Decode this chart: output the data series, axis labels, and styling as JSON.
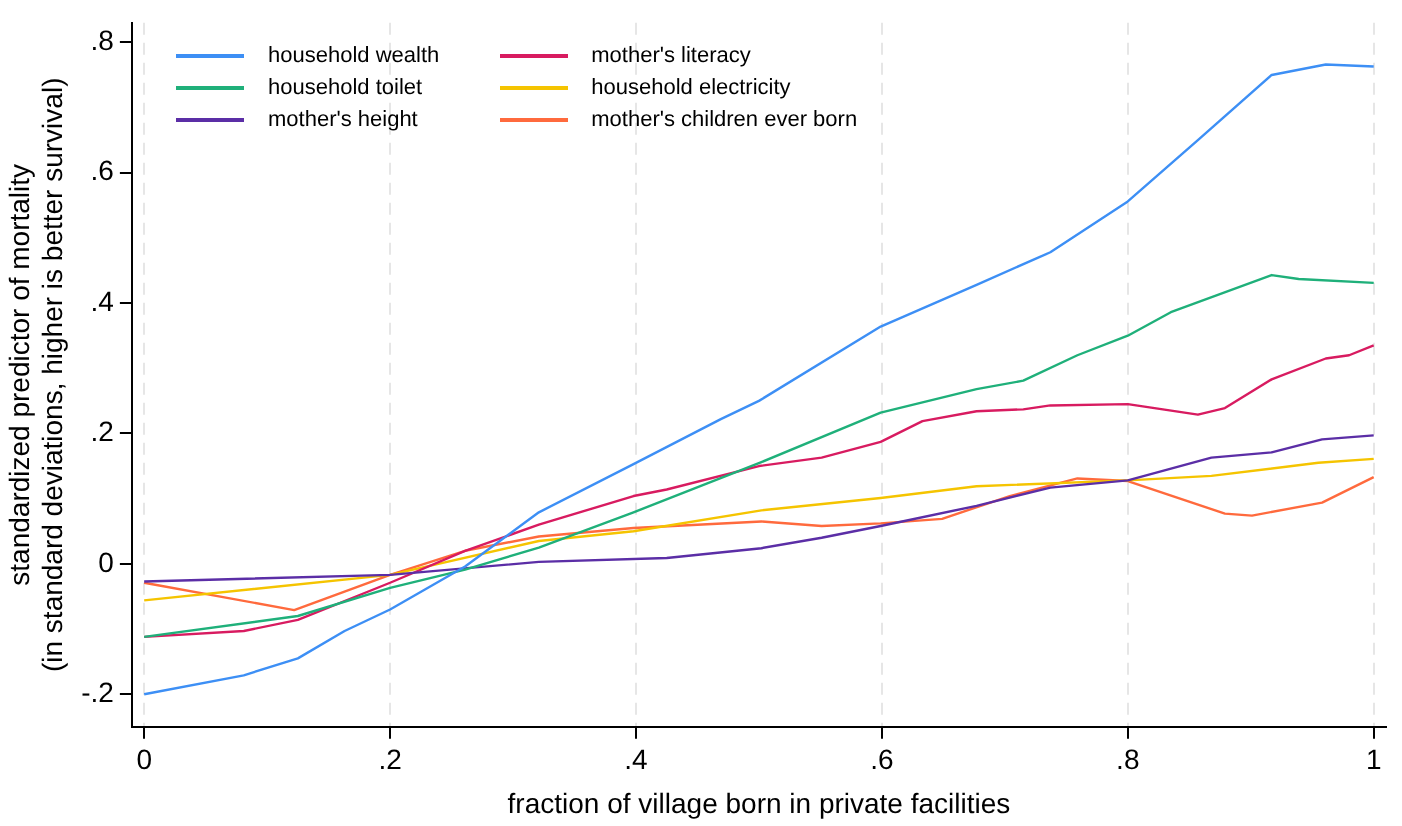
{
  "chart_data": {
    "type": "line",
    "xlabel": "fraction of village born in private facilities",
    "ylabel": "standardized predictor of mortality\n(in standard deviations, higher is better survival)",
    "xlim": [
      -0.01,
      1.01
    ],
    "xticks": [
      {
        "value": 0,
        "label": "0"
      },
      {
        "value": 0.2,
        "label": ".2"
      },
      {
        "value": 0.4,
        "label": ".4"
      },
      {
        "value": 0.6,
        "label": ".6"
      },
      {
        "value": 0.8,
        "label": ".8"
      },
      {
        "value": 1,
        "label": "1"
      }
    ],
    "ylim": [
      -0.25,
      0.83
    ],
    "yticks": [
      {
        "value": -0.2,
        "label": "-.2"
      },
      0,
      {
        "value": 0.2,
        "label": ".2"
      },
      {
        "value": 0.4,
        "label": ".4"
      },
      {
        "value": 0.6,
        "label": ".6"
      },
      {
        "value": 0.8,
        "label": ".8"
      }
    ],
    "grid": "x",
    "legend": "top left",
    "marker": "none",
    "line_style": "solid",
    "series": [
      {
        "name": "household wealth",
        "color": "#3d8ff5",
        "x": [
          0,
          0.081,
          0.125,
          0.163,
          0.2,
          0.261,
          0.321,
          0.398,
          0.469,
          0.5,
          0.599,
          0.677,
          0.737,
          0.8,
          0.857,
          0.917,
          0.961,
          1
        ],
        "values": [
          -0.2,
          -0.171,
          -0.145,
          -0.103,
          -0.07,
          -0.004,
          0.079,
          0.153,
          0.222,
          0.25,
          0.364,
          0.428,
          0.478,
          0.556,
          0.65,
          0.75,
          0.766,
          0.763
        ]
      },
      {
        "name": "household toilet",
        "color": "#1fb07a",
        "x": [
          0,
          0.125,
          0.2,
          0.261,
          0.321,
          0.398,
          0.502,
          0.599,
          0.677,
          0.715,
          0.759,
          0.8,
          0.835,
          0.917,
          0.939,
          1
        ],
        "values": [
          -0.112,
          -0.08,
          -0.037,
          -0.009,
          0.025,
          0.079,
          0.156,
          0.232,
          0.268,
          0.281,
          0.32,
          0.35,
          0.386,
          0.443,
          0.437,
          0.431
        ]
      },
      {
        "name": "mother's height",
        "color": "#5b2ea6",
        "x": [
          0,
          0.2,
          0.321,
          0.425,
          0.502,
          0.551,
          0.599,
          0.677,
          0.737,
          0.8,
          0.868,
          0.917,
          0.958,
          1
        ],
        "values": [
          -0.027,
          -0.017,
          0.003,
          0.009,
          0.024,
          0.04,
          0.058,
          0.089,
          0.117,
          0.128,
          0.163,
          0.171,
          0.191,
          0.197
        ]
      },
      {
        "name": "mother's literacy",
        "color": "#d81b60",
        "x": [
          0,
          0.081,
          0.125,
          0.2,
          0.261,
          0.321,
          0.398,
          0.425,
          0.5,
          0.551,
          0.599,
          0.633,
          0.677,
          0.715,
          0.737,
          0.8,
          0.857,
          0.879,
          0.917,
          0.961,
          0.98,
          1
        ],
        "values": [
          -0.112,
          -0.103,
          -0.086,
          -0.029,
          0.02,
          0.06,
          0.104,
          0.114,
          0.15,
          0.163,
          0.187,
          0.219,
          0.234,
          0.237,
          0.243,
          0.245,
          0.229,
          0.239,
          0.283,
          0.315,
          0.32,
          0.335
        ]
      },
      {
        "name": "household electricity",
        "color": "#f5c400",
        "x": [
          0,
          0.2,
          0.321,
          0.398,
          0.502,
          0.599,
          0.677,
          0.8,
          0.868,
          0.955,
          1
        ],
        "values": [
          -0.056,
          -0.017,
          0.035,
          0.05,
          0.082,
          0.101,
          0.119,
          0.128,
          0.135,
          0.155,
          0.161
        ]
      },
      {
        "name": "mother's children ever born",
        "color": "#ff6a3d",
        "x": [
          0,
          0.122,
          0.2,
          0.261,
          0.321,
          0.398,
          0.502,
          0.551,
          0.599,
          0.649,
          0.704,
          0.759,
          0.8,
          0.879,
          0.901,
          0.958,
          1
        ],
        "values": [
          -0.029,
          -0.071,
          -0.017,
          0.02,
          0.042,
          0.055,
          0.065,
          0.058,
          0.062,
          0.069,
          0.104,
          0.131,
          0.127,
          0.077,
          0.074,
          0.094,
          0.133
        ]
      }
    ]
  }
}
